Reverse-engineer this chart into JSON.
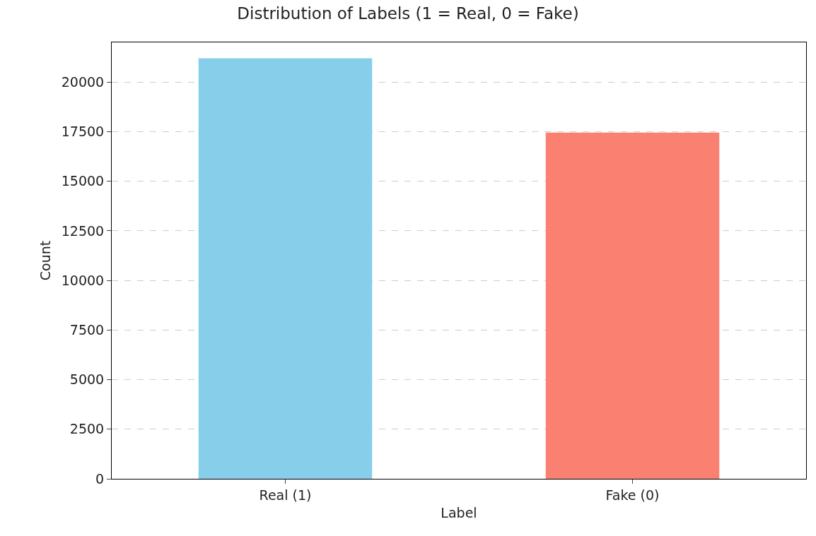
{
  "chart_data": {
    "type": "bar",
    "title": "Distribution of Labels (1 = Real, 0 = Fake)",
    "xlabel": "Label",
    "ylabel": "Count",
    "categories": [
      "Real (1)",
      "Fake (0)"
    ],
    "values": [
      21200,
      17450
    ],
    "colors": [
      "#87ceeb",
      "#fa8072"
    ],
    "ylim": [
      0,
      22000
    ],
    "yticks": [
      0,
      2500,
      5000,
      7500,
      10000,
      12500,
      15000,
      17500,
      20000
    ],
    "grid": "y",
    "legend": false
  }
}
